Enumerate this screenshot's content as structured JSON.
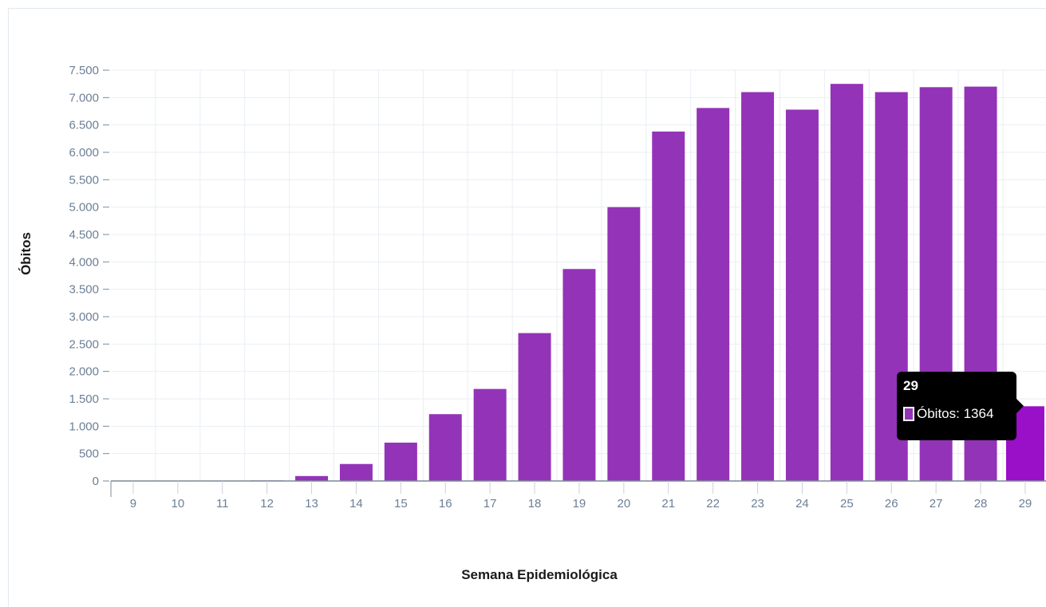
{
  "colors": {
    "bar": "#9333b8",
    "bar_highlight": "#9a0fc8",
    "grid": "#e9eef3",
    "tick_text": "#6b7f95",
    "axis": "#7a8896"
  },
  "chart_data": {
    "type": "bar",
    "categories": [
      "9",
      "10",
      "11",
      "12",
      "13",
      "14",
      "15",
      "16",
      "17",
      "18",
      "19",
      "20",
      "21",
      "22",
      "23",
      "24",
      "25",
      "26",
      "27",
      "28",
      "29"
    ],
    "series": [
      {
        "name": "Óbitos",
        "values": [
          0,
          0,
          0,
          10,
          90,
          310,
          700,
          1220,
          1680,
          2700,
          3870,
          5000,
          6380,
          6810,
          7100,
          6780,
          7250,
          7100,
          7190,
          7200,
          1364
        ]
      }
    ],
    "xlabel": "Semana Epidemiológica",
    "ylabel": "Óbitos",
    "ylim": [
      0,
      7500
    ],
    "yticks": [
      0,
      500,
      1000,
      1500,
      2000,
      2500,
      3000,
      3500,
      4000,
      4500,
      5000,
      5500,
      6000,
      6500,
      7000,
      7500
    ],
    "ytick_labels": [
      "0",
      "500",
      "1.000",
      "1.500",
      "2.000",
      "2.500",
      "3.000",
      "3.500",
      "4.000",
      "4.500",
      "5.000",
      "5.500",
      "6.000",
      "6.500",
      "7.000",
      "7.500"
    ],
    "grid": true,
    "highlighted_category": "29"
  },
  "tooltip": {
    "title": "29",
    "label": "Óbitos: 1364",
    "swatch_color": "#9333b8"
  }
}
